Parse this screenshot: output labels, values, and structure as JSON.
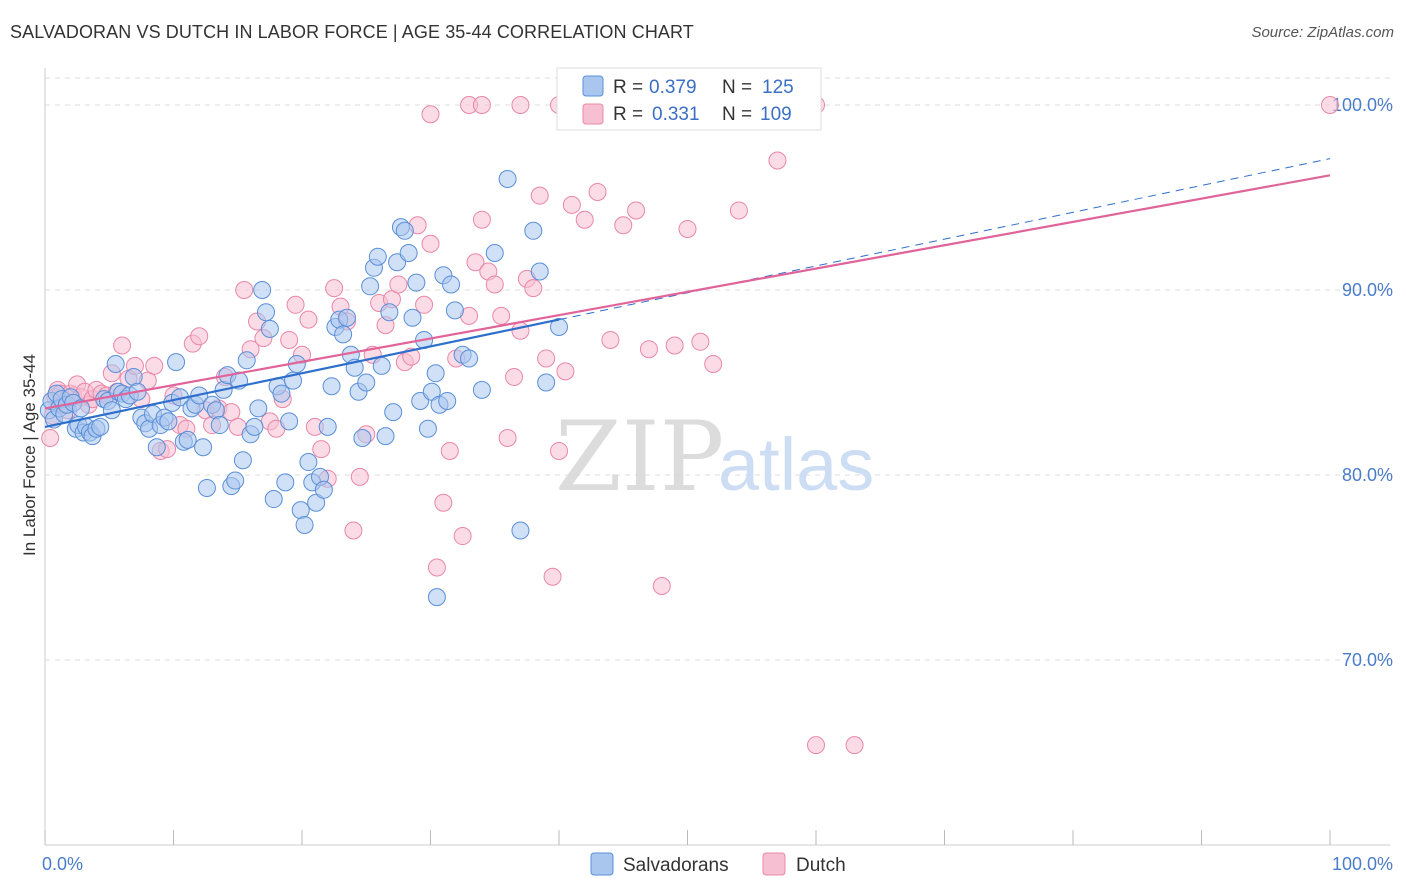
{
  "title": "SALVADORAN VS DUTCH IN LABOR FORCE | AGE 35-44 CORRELATION CHART",
  "source": "Source: ZipAtlas.com",
  "watermark": {
    "zip": "ZIP",
    "atlas": "atlas"
  },
  "colors": {
    "salvadoran_fill": "#a9c6ef",
    "salvadoran_stroke": "#5a8fd8",
    "salvadoran_line": "#2e6fcc",
    "dutch_fill": "#f7c0d2",
    "dutch_stroke": "#e987a8",
    "dutch_line": "#e0649a",
    "tick_text": "#4a7cc9",
    "grid": "#dddddd"
  },
  "legend": {
    "rows": [
      {
        "r_label": "R =",
        "r_value": "0.379",
        "n_label": "N =",
        "n_value": "125",
        "series": "salvadoran"
      },
      {
        "r_label": "R =",
        "r_value": "0.331",
        "n_label": "N =",
        "n_value": "109",
        "series": "dutch"
      }
    ]
  },
  "bottom_legend": [
    "Salvadorans",
    "Dutch"
  ],
  "chart_data": {
    "type": "scatter",
    "ylabel": "In Labor Force | Age 35-44",
    "xlabel": "",
    "x_tick_labels": [
      "0.0%",
      "100.0%"
    ],
    "y_tick_labels": [
      "70.0%",
      "80.0%",
      "90.0%",
      "100.0%"
    ],
    "y_ticks": [
      70,
      80,
      90,
      100
    ],
    "xlim": [
      0,
      100
    ],
    "ylim": [
      60,
      102
    ],
    "grid": "horizontal dashed",
    "legend_position": "top-center",
    "series": [
      {
        "name": "Salvadorans",
        "R": 0.379,
        "N": 125,
        "trend": {
          "x0": 0,
          "y0": 82.6,
          "x1": 40,
          "y1": 88.4,
          "dashed_to_x": 100,
          "dashed_to_y": 97.1
        },
        "points": [
          [
            0.3,
            83.5
          ],
          [
            0.5,
            84
          ],
          [
            0.7,
            83
          ],
          [
            0.9,
            84.4
          ],
          [
            1.1,
            83.6
          ],
          [
            1.3,
            84.1
          ],
          [
            1.5,
            83.3
          ],
          [
            1.7,
            83.8
          ],
          [
            2,
            84.2
          ],
          [
            2.2,
            83.9
          ],
          [
            2.4,
            82.5
          ],
          [
            2.6,
            82.7
          ],
          [
            2.8,
            83.6
          ],
          [
            3,
            82.3
          ],
          [
            3.2,
            82.6
          ],
          [
            3.5,
            82.3
          ],
          [
            3.7,
            82.1
          ],
          [
            4,
            82.5
          ],
          [
            4.3,
            82.6
          ],
          [
            4.6,
            84.1
          ],
          [
            4.9,
            84
          ],
          [
            5.2,
            83.5
          ],
          [
            5.5,
            86
          ],
          [
            5.7,
            84.5
          ],
          [
            6,
            84.4
          ],
          [
            6.3,
            84.1
          ],
          [
            6.6,
            84.3
          ],
          [
            6.9,
            85.3
          ],
          [
            7.2,
            84.5
          ],
          [
            7.5,
            83.1
          ],
          [
            7.8,
            82.8
          ],
          [
            8.1,
            82.5
          ],
          [
            8.4,
            83.3
          ],
          [
            8.7,
            81.5
          ],
          [
            9,
            82.7
          ],
          [
            9.3,
            83.1
          ],
          [
            9.6,
            82.9
          ],
          [
            9.9,
            83.9
          ],
          [
            10.2,
            86.1
          ],
          [
            10.5,
            84.2
          ],
          [
            10.8,
            81.8
          ],
          [
            11.1,
            81.9
          ],
          [
            11.4,
            83.6
          ],
          [
            11.7,
            83.8
          ],
          [
            12,
            84.3
          ],
          [
            12.3,
            81.5
          ],
          [
            12.6,
            79.3
          ],
          [
            13,
            83.8
          ],
          [
            13.3,
            83.5
          ],
          [
            13.6,
            82.7
          ],
          [
            13.9,
            84.6
          ],
          [
            14.2,
            85.4
          ],
          [
            14.5,
            79.4
          ],
          [
            14.8,
            79.7
          ],
          [
            15.1,
            85.1
          ],
          [
            15.4,
            80.8
          ],
          [
            15.7,
            86.2
          ],
          [
            16,
            82.2
          ],
          [
            16.3,
            82.6
          ],
          [
            16.6,
            83.6
          ],
          [
            16.9,
            90
          ],
          [
            17.2,
            88.8
          ],
          [
            17.5,
            87.9
          ],
          [
            17.8,
            78.7
          ],
          [
            18.1,
            84.8
          ],
          [
            18.4,
            84.4
          ],
          [
            18.7,
            79.6
          ],
          [
            19,
            82.9
          ],
          [
            19.3,
            85.1
          ],
          [
            19.6,
            86
          ],
          [
            19.9,
            78.1
          ],
          [
            20.2,
            77.3
          ],
          [
            20.5,
            80.7
          ],
          [
            20.8,
            79.6
          ],
          [
            21.1,
            78.5
          ],
          [
            21.4,
            79.9
          ],
          [
            21.7,
            79.2
          ],
          [
            22,
            82.6
          ],
          [
            22.3,
            84.8
          ],
          [
            22.6,
            88
          ],
          [
            22.9,
            88.4
          ],
          [
            23.2,
            87.6
          ],
          [
            23.5,
            88.5
          ],
          [
            23.8,
            86.5
          ],
          [
            24.1,
            85.8
          ],
          [
            24.4,
            84.5
          ],
          [
            24.7,
            82
          ],
          [
            25,
            85
          ],
          [
            25.3,
            90.2
          ],
          [
            25.6,
            91.2
          ],
          [
            25.9,
            91.8
          ],
          [
            26.2,
            85.9
          ],
          [
            26.5,
            82.1
          ],
          [
            26.8,
            88.8
          ],
          [
            27.1,
            83.4
          ],
          [
            27.4,
            91.5
          ],
          [
            27.7,
            93.4
          ],
          [
            28,
            93.2
          ],
          [
            28.3,
            92
          ],
          [
            28.6,
            88.5
          ],
          [
            28.9,
            90.4
          ],
          [
            29.2,
            84
          ],
          [
            29.5,
            87.3
          ],
          [
            29.8,
            82.5
          ],
          [
            30.1,
            84.5
          ],
          [
            30.4,
            85.5
          ],
          [
            30.7,
            83.8
          ],
          [
            31,
            90.8
          ],
          [
            31.3,
            84
          ],
          [
            31.6,
            90.3
          ],
          [
            31.9,
            88.9
          ],
          [
            32.5,
            86.5
          ],
          [
            33,
            86.3
          ],
          [
            34,
            84.6
          ],
          [
            35,
            92
          ],
          [
            36,
            96
          ],
          [
            37,
            77
          ],
          [
            38,
            93.2
          ],
          [
            38.5,
            91
          ],
          [
            39,
            85
          ],
          [
            40,
            88
          ],
          [
            30.5,
            73.4
          ]
        ]
      },
      {
        "name": "Dutch",
        "R": 0.331,
        "N": 109,
        "trend": {
          "x0": 0,
          "y0": 83.6,
          "x1": 100,
          "y1": 96.2
        },
        "points": [
          [
            0.4,
            82
          ],
          [
            0.6,
            83.2
          ],
          [
            0.8,
            84.2
          ],
          [
            1,
            84.6
          ],
          [
            1.2,
            84.4
          ],
          [
            1.4,
            83.8
          ],
          [
            1.6,
            84
          ],
          [
            1.8,
            83.5
          ],
          [
            2,
            84.4
          ],
          [
            2.2,
            84.3
          ],
          [
            2.5,
            84.9
          ],
          [
            2.8,
            84.2
          ],
          [
            3.1,
            84.5
          ],
          [
            3.4,
            83.8
          ],
          [
            3.7,
            84.1
          ],
          [
            4,
            84.6
          ],
          [
            4.4,
            84.4
          ],
          [
            4.8,
            84.3
          ],
          [
            5.2,
            85.5
          ],
          [
            5.6,
            84.5
          ],
          [
            6,
            87
          ],
          [
            6.5,
            85.2
          ],
          [
            7,
            85.9
          ],
          [
            7.5,
            84.1
          ],
          [
            8,
            85.1
          ],
          [
            8.5,
            85.9
          ],
          [
            9,
            81.3
          ],
          [
            9.5,
            81.4
          ],
          [
            10,
            84.3
          ],
          [
            10.5,
            82.7
          ],
          [
            11,
            82.5
          ],
          [
            11.5,
            87.1
          ],
          [
            12,
            87.5
          ],
          [
            12.5,
            83.5
          ],
          [
            13,
            82.7
          ],
          [
            13.5,
            83.6
          ],
          [
            14,
            85.3
          ],
          [
            14.5,
            83.4
          ],
          [
            15,
            82.6
          ],
          [
            15.5,
            90
          ],
          [
            16,
            86.8
          ],
          [
            16.5,
            88.3
          ],
          [
            17,
            87.4
          ],
          [
            17.5,
            82.9
          ],
          [
            18,
            82.5
          ],
          [
            18.5,
            84.1
          ],
          [
            19,
            87.3
          ],
          [
            19.5,
            89.2
          ],
          [
            20,
            86.5
          ],
          [
            20.5,
            88.4
          ],
          [
            21,
            82.6
          ],
          [
            21.5,
            81.4
          ],
          [
            22,
            79.8
          ],
          [
            22.5,
            90.1
          ],
          [
            23,
            89.1
          ],
          [
            23.5,
            88.3
          ],
          [
            24,
            77
          ],
          [
            24.5,
            79.9
          ],
          [
            25,
            82.2
          ],
          [
            25.5,
            86.5
          ],
          [
            26,
            89.3
          ],
          [
            26.5,
            88.1
          ],
          [
            27,
            89.5
          ],
          [
            27.5,
            90.3
          ],
          [
            28,
            86.1
          ],
          [
            28.5,
            86.4
          ],
          [
            29,
            93.5
          ],
          [
            29.5,
            89.2
          ],
          [
            30,
            92.5
          ],
          [
            30.5,
            75
          ],
          [
            31,
            78.5
          ],
          [
            31.5,
            81.3
          ],
          [
            32,
            86.3
          ],
          [
            32.5,
            76.7
          ],
          [
            33,
            88.6
          ],
          [
            33.5,
            91.5
          ],
          [
            34,
            93.8
          ],
          [
            34.5,
            91
          ],
          [
            35,
            90.3
          ],
          [
            35.5,
            88.6
          ],
          [
            36,
            82
          ],
          [
            36.5,
            85.3
          ],
          [
            37,
            87.8
          ],
          [
            37.5,
            90.6
          ],
          [
            38,
            90.1
          ],
          [
            38.5,
            95.1
          ],
          [
            39,
            86.3
          ],
          [
            39.5,
            74.5
          ],
          [
            40,
            81.3
          ],
          [
            40.5,
            85.6
          ],
          [
            41,
            94.6
          ],
          [
            42,
            93.8
          ],
          [
            43,
            95.3
          ],
          [
            44,
            87.3
          ],
          [
            45,
            93.5
          ],
          [
            46,
            94.3
          ],
          [
            47,
            86.8
          ],
          [
            48,
            74
          ],
          [
            49,
            87
          ],
          [
            50,
            93.3
          ],
          [
            51,
            87.2
          ],
          [
            52,
            86
          ],
          [
            54,
            94.3
          ],
          [
            57,
            97
          ],
          [
            60,
            65.4
          ],
          [
            63,
            65.4
          ],
          [
            30,
            99.5
          ],
          [
            33,
            100
          ],
          [
            34,
            100
          ],
          [
            37,
            100
          ],
          [
            40,
            100
          ],
          [
            50,
            100
          ],
          [
            60,
            100
          ],
          [
            100,
            100
          ]
        ]
      }
    ]
  }
}
